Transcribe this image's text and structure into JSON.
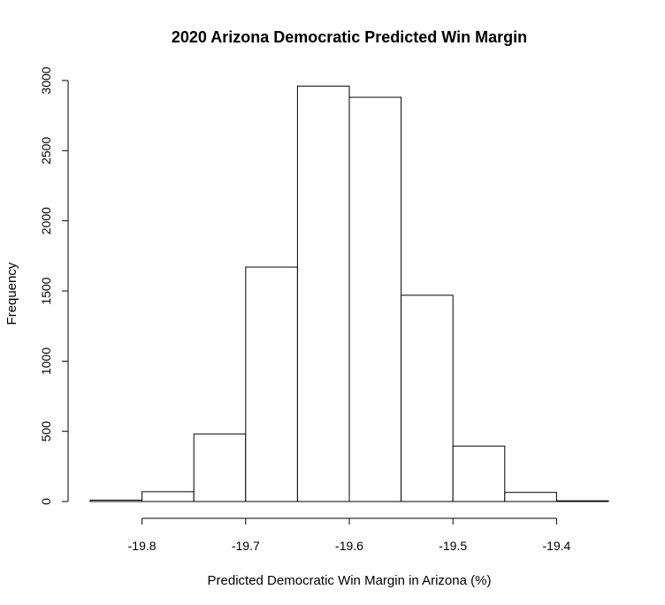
{
  "chart_data": {
    "type": "bar",
    "title": "2020 Arizona Democratic Predicted Win Margin",
    "xlabel": "Predicted Democratic Win Margin in Arizona (%)",
    "ylabel": "Frequency",
    "bins": [
      {
        "start": -19.85,
        "end": -19.8,
        "value": 10
      },
      {
        "start": -19.8,
        "end": -19.75,
        "value": 70
      },
      {
        "start": -19.75,
        "end": -19.7,
        "value": 480
      },
      {
        "start": -19.7,
        "end": -19.65,
        "value": 1670
      },
      {
        "start": -19.65,
        "end": -19.6,
        "value": 2960
      },
      {
        "start": -19.6,
        "end": -19.55,
        "value": 2880
      },
      {
        "start": -19.55,
        "end": -19.5,
        "value": 1470
      },
      {
        "start": -19.5,
        "end": -19.45,
        "value": 395
      },
      {
        "start": -19.45,
        "end": -19.4,
        "value": 65
      },
      {
        "start": -19.4,
        "end": -19.35,
        "value": 5
      }
    ],
    "xticks": [
      -19.8,
      -19.7,
      -19.6,
      -19.5,
      -19.4
    ],
    "xtick_labels": [
      "-19.8",
      "-19.7",
      "-19.6",
      "-19.5",
      "-19.4"
    ],
    "yticks": [
      0,
      500,
      1000,
      1500,
      2000,
      2500,
      3000
    ],
    "ytick_labels": [
      "0",
      "500",
      "1000",
      "1500",
      "2000",
      "2500",
      "3000"
    ],
    "xlim": [
      -19.85,
      -19.35
    ],
    "ylim": [
      0,
      3000
    ],
    "grid": false,
    "colors": {
      "bar_fill": "#ffffff",
      "bar_stroke": "#000000"
    }
  }
}
